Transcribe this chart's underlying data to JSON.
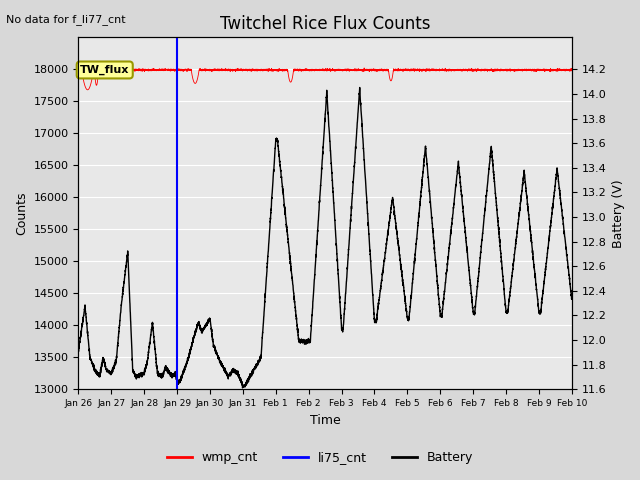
{
  "title": "Twitchel Rice Flux Counts",
  "no_data_text": "No data for f_li77_cnt",
  "annotation_text": "TW_flux",
  "xlabel": "Time",
  "ylabel_left": "Counts",
  "ylabel_right": "Battery (V)",
  "ylim_left": [
    13000,
    18500
  ],
  "ylim_right": [
    11.6,
    14.2
  ],
  "yticks_left": [
    13000,
    13500,
    14000,
    14500,
    15000,
    15500,
    16000,
    16500,
    17000,
    17500,
    18000
  ],
  "yticks_right": [
    11.6,
    11.8,
    12.0,
    12.2,
    12.4,
    12.6,
    12.8,
    13.0,
    13.2,
    13.4,
    13.6,
    13.8,
    14.0,
    14.2
  ],
  "xtick_labels": [
    "Jan 26",
    "Jan 27",
    "Jan 28",
    "Jan 29",
    "Jan 30",
    "Jan 31",
    "Feb 1",
    "Feb 2",
    "Feb 3",
    "Feb 4",
    "Feb 5",
    "Feb 6",
    "Feb 7",
    "Feb 8",
    "Feb 9",
    "Feb 10"
  ],
  "wmp_cnt_color": "#ff0000",
  "li75_cnt_color": "#0000ff",
  "battery_color": "#000000",
  "background_color": "#d8d8d8",
  "plot_bg_color": "#e8e8e8",
  "annotation_bg": "#ffff99",
  "annotation_border": "#999900",
  "vline_x": 3.0,
  "legend_labels": [
    "wmp_cnt",
    "li75_cnt",
    "Battery"
  ],
  "battery_keypoints_x": [
    0.0,
    0.2,
    0.35,
    0.5,
    0.65,
    0.75,
    0.85,
    1.0,
    1.15,
    1.3,
    1.5,
    1.65,
    1.75,
    2.0,
    2.1,
    2.25,
    2.4,
    2.55,
    2.65,
    2.85,
    2.95,
    3.0,
    3.05,
    3.15,
    3.35,
    3.5,
    3.65,
    3.75,
    4.0,
    4.1,
    4.25,
    4.4,
    4.55,
    4.7,
    4.85,
    5.0,
    5.05,
    5.55,
    6.0,
    6.05,
    6.7,
    7.0,
    7.05,
    7.55,
    8.0,
    8.05,
    8.55,
    9.0,
    9.05,
    9.55,
    10.0,
    10.05,
    10.55,
    11.0,
    11.05,
    11.55,
    12.0,
    12.05,
    12.55,
    13.0,
    13.05,
    13.55,
    14.0,
    14.05,
    14.55,
    15.0
  ],
  "battery_keypoints_v": [
    13600,
    14300,
    13500,
    13300,
    13200,
    13500,
    13300,
    13250,
    13450,
    14300,
    15150,
    13300,
    13200,
    13250,
    13450,
    14050,
    13250,
    13200,
    13350,
    13200,
    13250,
    13100,
    13100,
    13200,
    13500,
    13800,
    14050,
    13900,
    14100,
    13700,
    13500,
    13350,
    13200,
    13300,
    13250,
    13050,
    13050,
    13500,
    16900,
    16900,
    13750,
    13750,
    13750,
    17650,
    13950,
    13950,
    17700,
    14050,
    14050,
    16000,
    14100,
    14100,
    16800,
    14150,
    14150,
    16550,
    14200,
    14200,
    16800,
    14200,
    14200,
    16400,
    14200,
    14200,
    16450,
    14400
  ]
}
